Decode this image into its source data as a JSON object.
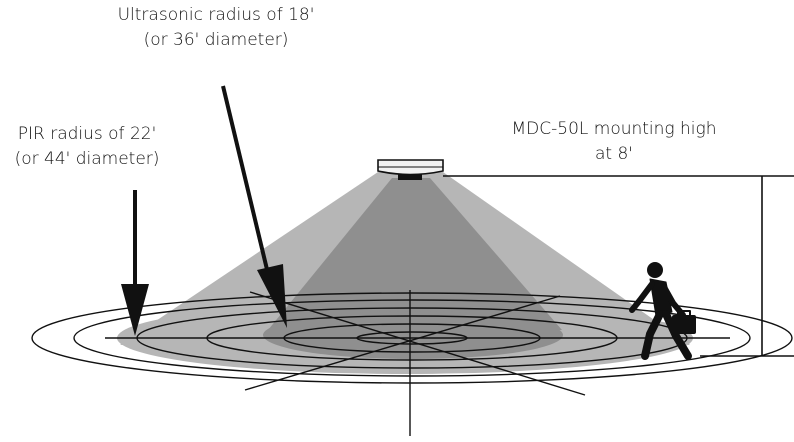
{
  "labels": {
    "ultrasonic": {
      "line1": "Ultrasonic radius of 18'",
      "line2": "(or 36' diameter)"
    },
    "pir": {
      "line1": "PIR radius of 22'",
      "line2": "(or 44' diameter)"
    },
    "mounting": {
      "line1": "MDC-50L mounting high",
      "line2": "at 8'"
    }
  },
  "colors": {
    "pir_zone": "#b4b4b4",
    "ultrasonic_zone": "#8e8e8e",
    "lines": "#111111",
    "sensor": "#f2f2f2"
  }
}
